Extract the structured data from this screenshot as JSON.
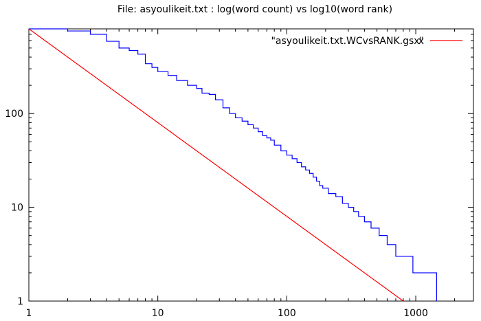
{
  "chart_data": {
    "type": "line",
    "title": "File: asyoulikeit.txt : log(word count) vs log10(word rank)",
    "xlabel": "",
    "ylabel": "",
    "x_scale": "log",
    "y_scale": "log",
    "xlim": [
      1,
      2800
    ],
    "ylim": [
      1,
      800
    ],
    "grid": false,
    "legend_position": "top-right",
    "x_ticks": [
      {
        "value": 1,
        "label": "1"
      },
      {
        "value": 10,
        "label": "10"
      },
      {
        "value": 100,
        "label": "100"
      },
      {
        "value": 1000,
        "label": "1000"
      }
    ],
    "y_ticks": [
      {
        "value": 1,
        "label": "1"
      },
      {
        "value": 10,
        "label": "10"
      },
      {
        "value": 100,
        "label": "100"
      }
    ],
    "series": [
      {
        "name": "\"asyoulikeit.txt.WCvsRANK.gsx\"",
        "color": "#0000ff",
        "style": "steps",
        "points": [
          [
            1,
            800
          ],
          [
            2,
            760
          ],
          [
            3,
            700
          ],
          [
            4,
            590
          ],
          [
            5,
            500
          ],
          [
            6,
            470
          ],
          [
            7,
            430
          ],
          [
            8,
            340
          ],
          [
            9,
            310
          ],
          [
            10,
            280
          ],
          [
            12,
            255
          ],
          [
            14,
            225
          ],
          [
            17,
            200
          ],
          [
            20,
            185
          ],
          [
            22,
            165
          ],
          [
            25,
            160
          ],
          [
            28,
            140
          ],
          [
            32,
            115
          ],
          [
            36,
            100
          ],
          [
            40,
            90
          ],
          [
            45,
            83
          ],
          [
            50,
            76
          ],
          [
            55,
            70
          ],
          [
            60,
            64
          ],
          [
            65,
            58
          ],
          [
            70,
            55
          ],
          [
            75,
            52
          ],
          [
            80,
            46
          ],
          [
            90,
            40
          ],
          [
            100,
            36
          ],
          [
            110,
            33
          ],
          [
            120,
            30
          ],
          [
            130,
            27
          ],
          [
            140,
            25
          ],
          [
            150,
            23
          ],
          [
            160,
            21
          ],
          [
            170,
            19
          ],
          [
            180,
            17
          ],
          [
            190,
            16
          ],
          [
            210,
            14
          ],
          [
            240,
            13
          ],
          [
            270,
            11
          ],
          [
            300,
            10
          ],
          [
            330,
            9
          ],
          [
            360,
            8
          ],
          [
            400,
            7
          ],
          [
            450,
            6
          ],
          [
            520,
            5
          ],
          [
            600,
            4
          ],
          [
            700,
            3
          ],
          [
            950,
            2
          ],
          [
            1450,
            1
          ]
        ]
      },
      {
        "name": "x",
        "color": "#ff0000",
        "style": "line",
        "points": [
          [
            1,
            800
          ],
          [
            800,
            1
          ]
        ]
      }
    ]
  }
}
